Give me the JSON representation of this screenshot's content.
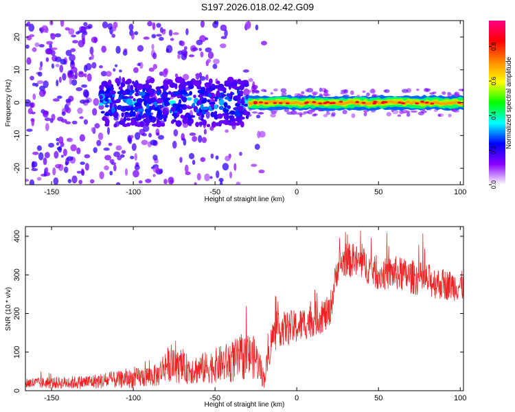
{
  "title": "S197.2026.018.02.42.G09",
  "chart_data": [
    {
      "type": "heatmap",
      "title": "S197.2026.018.02.42.G09",
      "xlabel": "Height of straight line (km)",
      "ylabel": "Frequency (Hz)",
      "xlim": [
        -166,
        102
      ],
      "ylim": [
        -25,
        25
      ],
      "x_ticks": [
        -150,
        -100,
        -50,
        0,
        50,
        100
      ],
      "x_tick_labels": [
        "-150",
        "-100",
        "-50",
        "0",
        "50",
        "100"
      ],
      "y_ticks": [
        -20,
        -10,
        0,
        10,
        20
      ],
      "y_tick_labels": [
        "-20",
        "-10",
        "0",
        "10",
        "20"
      ],
      "colorbar": {
        "label": "Normalized spectral amplitude",
        "range": [
          0,
          0.95
        ],
        "ticks": [
          0.0,
          0.2,
          0.4,
          0.6,
          0.8
        ],
        "tick_labels": [
          "0.0",
          "0.2",
          "0.4",
          "0.6",
          "0.8"
        ],
        "colormap": [
          "#ffffff",
          "#8800ff",
          "#0000ff",
          "#00ffff",
          "#00ff00",
          "#ffff00",
          "#ff8800",
          "#ff0000",
          "#ff0088"
        ]
      },
      "ridge": {
        "description_values": "coherent signal band near 0 Hz from -30 km to 100 km",
        "x_start": -30,
        "x_end": 102,
        "center_hz": 0.0,
        "half_width_hz": 1.5
      }
    },
    {
      "type": "line",
      "xlabel": "Height of straight line (km)",
      "ylabel": "SNR (10 * v/v)",
      "xlim": [
        -166,
        102
      ],
      "ylim": [
        0,
        425
      ],
      "x_ticks": [
        -150,
        -100,
        -50,
        0,
        50,
        100
      ],
      "x_tick_labels": [
        "-150",
        "-100",
        "-50",
        "0",
        "50",
        "100"
      ],
      "y_ticks": [
        0,
        100,
        200,
        300,
        400
      ],
      "y_tick_labels": [
        "0",
        "100",
        "200",
        "300",
        "400"
      ],
      "color": "#ee2222",
      "x": [
        -166,
        -150,
        -130,
        -110,
        -100,
        -85,
        -80,
        -70,
        -60,
        -50,
        -40,
        -30,
        -25,
        -20,
        -15,
        -10,
        0,
        10,
        20,
        25,
        30,
        40,
        50,
        60,
        70,
        80,
        90,
        102
      ],
      "y": [
        20,
        20,
        22,
        28,
        32,
        40,
        70,
        58,
        55,
        65,
        75,
        90,
        85,
        30,
        140,
        160,
        165,
        185,
        200,
        320,
        340,
        330,
        300,
        305,
        295,
        285,
        275,
        270
      ],
      "y_spread": [
        15,
        15,
        18,
        22,
        25,
        30,
        45,
        40,
        40,
        45,
        55,
        60,
        55,
        25,
        45,
        45,
        45,
        45,
        45,
        40,
        45,
        45,
        40,
        45,
        45,
        45,
        40,
        40
      ]
    }
  ]
}
